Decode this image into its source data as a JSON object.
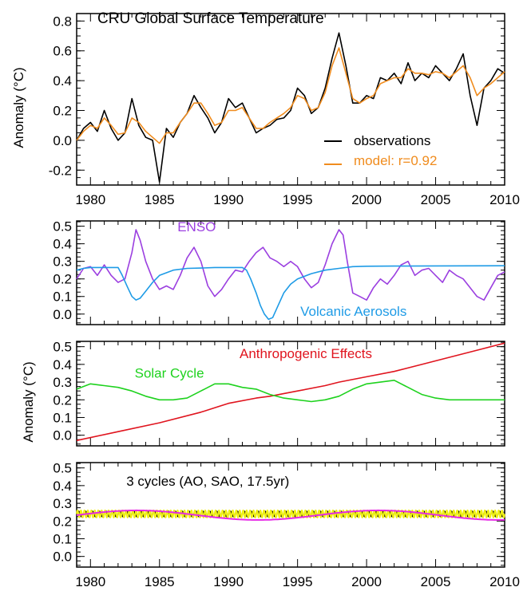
{
  "colors": {
    "observations": "#000000",
    "model": "#f08c1e",
    "enso": "#9b3fe0",
    "volcanic": "#1e9be6",
    "anthropogenic": "#e0141e",
    "solar": "#1ed21e",
    "cycle_black": "#000000",
    "cycle_yellow": "#f0f014",
    "cycle_magenta": "#e628e6"
  },
  "chart_data": [
    {
      "type": "line",
      "title": "CRU Global Surface Temperature",
      "ylabel": "Anomaly (°C)",
      "xlim": [
        1979,
        2010
      ],
      "ylim": [
        -0.3,
        0.85
      ],
      "xticks": [
        "1980",
        "1985",
        "1990",
        "1995",
        "2000",
        "2005",
        "2010"
      ],
      "yticks": [
        "-0.2",
        "0.0",
        "0.2",
        "0.4",
        "0.6",
        "0.8"
      ],
      "legend": [
        {
          "label": "observations",
          "color_key": "observations"
        },
        {
          "label": "model:  r=0.92",
          "color_key": "model"
        }
      ],
      "series": [
        {
          "name": "observations",
          "color_key": "observations",
          "x": [
            1979,
            1979.5,
            1980,
            1980.5,
            1981,
            1981.5,
            1982,
            1982.5,
            1983,
            1983.5,
            1984,
            1984.5,
            1985,
            1985.5,
            1986,
            1986.5,
            1987,
            1987.5,
            1988,
            1988.5,
            1989,
            1989.5,
            1990,
            1990.5,
            1991,
            1991.5,
            1992,
            1992.5,
            1993,
            1993.5,
            1994,
            1994.5,
            1995,
            1995.5,
            1996,
            1996.5,
            1997,
            1997.5,
            1998,
            1998.5,
            1999,
            1999.5,
            2000,
            2000.5,
            2001,
            2001.5,
            2002,
            2002.5,
            2003,
            2003.5,
            2004,
            2004.5,
            2005,
            2005.5,
            2006,
            2006.5,
            2007,
            2007.5,
            2008,
            2008.5,
            2009,
            2009.5,
            2010
          ],
          "y": [
            0.0,
            0.08,
            0.12,
            0.06,
            0.2,
            0.08,
            0.0,
            0.05,
            0.28,
            0.1,
            0.02,
            0.0,
            -0.28,
            0.08,
            0.02,
            0.12,
            0.18,
            0.3,
            0.22,
            0.15,
            0.05,
            0.12,
            0.28,
            0.22,
            0.25,
            0.15,
            0.05,
            0.08,
            0.1,
            0.14,
            0.15,
            0.2,
            0.35,
            0.3,
            0.18,
            0.22,
            0.35,
            0.55,
            0.72,
            0.5,
            0.25,
            0.25,
            0.3,
            0.28,
            0.42,
            0.4,
            0.45,
            0.38,
            0.52,
            0.4,
            0.45,
            0.42,
            0.5,
            0.45,
            0.4,
            0.48,
            0.58,
            0.3,
            0.1,
            0.35,
            0.4,
            0.48,
            0.45
          ]
        },
        {
          "name": "model",
          "color_key": "model",
          "x": [
            1979,
            1979.5,
            1980,
            1980.5,
            1981,
            1981.5,
            1982,
            1982.5,
            1983,
            1983.5,
            1984,
            1984.5,
            1985,
            1985.5,
            1986,
            1986.5,
            1987,
            1987.5,
            1988,
            1988.5,
            1989,
            1989.5,
            1990,
            1990.5,
            1991,
            1991.5,
            1992,
            1992.5,
            1993,
            1993.5,
            1994,
            1994.5,
            1995,
            1995.5,
            1996,
            1996.5,
            1997,
            1997.5,
            1998,
            1998.5,
            1999,
            1999.5,
            2000,
            2000.5,
            2001,
            2001.5,
            2002,
            2002.5,
            2003,
            2003.5,
            2004,
            2004.5,
            2005,
            2005.5,
            2006,
            2006.5,
            2007,
            2007.5,
            2008,
            2008.5,
            2009,
            2009.5,
            2010
          ],
          "y": [
            0.0,
            0.06,
            0.1,
            0.08,
            0.15,
            0.1,
            0.04,
            0.05,
            0.15,
            0.12,
            0.06,
            0.02,
            -0.02,
            0.05,
            0.05,
            0.12,
            0.18,
            0.25,
            0.25,
            0.18,
            0.1,
            0.12,
            0.2,
            0.2,
            0.22,
            0.15,
            0.08,
            0.08,
            0.12,
            0.15,
            0.18,
            0.22,
            0.3,
            0.28,
            0.2,
            0.22,
            0.32,
            0.5,
            0.62,
            0.45,
            0.28,
            0.25,
            0.28,
            0.3,
            0.38,
            0.4,
            0.42,
            0.42,
            0.48,
            0.45,
            0.45,
            0.44,
            0.46,
            0.45,
            0.42,
            0.46,
            0.5,
            0.42,
            0.3,
            0.35,
            0.38,
            0.42,
            0.46
          ]
        }
      ]
    },
    {
      "type": "line",
      "xlim": [
        1979,
        2010
      ],
      "ylim": [
        -0.06,
        0.53
      ],
      "yticks": [
        "0.0",
        "0.1",
        "0.2",
        "0.3",
        "0.4",
        "0.5"
      ],
      "annotations": [
        {
          "text": "ENSO",
          "color_key": "enso",
          "x": 1986.3,
          "y": 0.47
        },
        {
          "text": "Volcanic Aerosols",
          "color_key": "volcanic",
          "x": 1995.2,
          "y": -0.01
        }
      ],
      "series": [
        {
          "name": "ENSO",
          "color_key": "enso",
          "x": [
            1979,
            1979.5,
            1980,
            1980.5,
            1981,
            1981.5,
            1982,
            1982.5,
            1983,
            1983.3,
            1983.6,
            1984,
            1984.5,
            1985,
            1985.5,
            1986,
            1986.5,
            1987,
            1987.5,
            1988,
            1988.5,
            1989,
            1989.5,
            1990,
            1990.5,
            1991,
            1991.5,
            1992,
            1992.5,
            1993,
            1993.5,
            1994,
            1994.5,
            1995,
            1995.5,
            1996,
            1996.5,
            1997,
            1997.5,
            1998,
            1998.3,
            1998.6,
            1999,
            1999.5,
            2000,
            2000.5,
            2001,
            2001.5,
            2002,
            2002.5,
            2003,
            2003.5,
            2004,
            2004.5,
            2005,
            2005.5,
            2006,
            2006.5,
            2007,
            2007.5,
            2008,
            2008.5,
            2009,
            2009.5,
            2010
          ],
          "y": [
            0.2,
            0.26,
            0.27,
            0.22,
            0.28,
            0.22,
            0.18,
            0.2,
            0.35,
            0.48,
            0.42,
            0.3,
            0.2,
            0.14,
            0.16,
            0.14,
            0.22,
            0.32,
            0.38,
            0.3,
            0.16,
            0.1,
            0.14,
            0.2,
            0.25,
            0.24,
            0.3,
            0.35,
            0.38,
            0.32,
            0.3,
            0.27,
            0.3,
            0.27,
            0.2,
            0.15,
            0.18,
            0.28,
            0.4,
            0.48,
            0.45,
            0.3,
            0.12,
            0.1,
            0.08,
            0.15,
            0.2,
            0.17,
            0.22,
            0.28,
            0.3,
            0.22,
            0.25,
            0.26,
            0.22,
            0.18,
            0.25,
            0.22,
            0.2,
            0.15,
            0.1,
            0.08,
            0.15,
            0.22,
            0.24
          ]
        },
        {
          "name": "Volcanic Aerosols",
          "color_key": "volcanic",
          "x": [
            1979,
            1979.5,
            1980,
            1981,
            1982,
            1982.3,
            1982.7,
            1983,
            1983.3,
            1983.6,
            1984,
            1984.5,
            1985,
            1986,
            1987,
            1988,
            1989,
            1990,
            1991,
            1991.3,
            1991.6,
            1992,
            1992.3,
            1992.6,
            1992.9,
            1993.2,
            1993.6,
            1994,
            1994.5,
            1995,
            1996,
            1997,
            1998,
            1999,
            2000,
            2002,
            2005,
            2010
          ],
          "y": [
            0.25,
            0.26,
            0.265,
            0.265,
            0.265,
            0.22,
            0.15,
            0.1,
            0.08,
            0.09,
            0.13,
            0.18,
            0.22,
            0.25,
            0.26,
            0.262,
            0.265,
            0.265,
            0.265,
            0.25,
            0.2,
            0.12,
            0.05,
            0.0,
            -0.03,
            -0.02,
            0.05,
            0.12,
            0.17,
            0.2,
            0.23,
            0.25,
            0.26,
            0.27,
            0.272,
            0.273,
            0.274,
            0.275
          ]
        }
      ]
    },
    {
      "type": "line",
      "ylabel": "Anomaly (°C)",
      "xlim": [
        1979,
        2010
      ],
      "ylim": [
        -0.06,
        0.53
      ],
      "yticks": [
        "0.0",
        "0.1",
        "0.2",
        "0.3",
        "0.4",
        "0.5"
      ],
      "annotations": [
        {
          "text": "Anthropogenic Effects",
          "color_key": "anthropogenic",
          "x": 1990.8,
          "y": 0.435
        },
        {
          "text": "Solar Cycle",
          "color_key": "solar",
          "x": 1983.2,
          "y": 0.325
        }
      ],
      "series": [
        {
          "name": "Anthropogenic Effects",
          "color_key": "anthropogenic",
          "x": [
            1979,
            1982,
            1985,
            1988,
            1990,
            1992,
            1993,
            1995,
            1997,
            1998,
            2000,
            2002,
            2004,
            2006,
            2008,
            2010
          ],
          "y": [
            -0.03,
            0.02,
            0.07,
            0.13,
            0.18,
            0.21,
            0.22,
            0.25,
            0.28,
            0.3,
            0.33,
            0.36,
            0.4,
            0.44,
            0.48,
            0.52
          ]
        },
        {
          "name": "Solar Cycle",
          "color_key": "solar",
          "x": [
            1979,
            1980,
            1981,
            1982,
            1983,
            1984,
            1985,
            1986,
            1987,
            1988,
            1989,
            1990,
            1991,
            1992,
            1993,
            1994,
            1995,
            1996,
            1997,
            1998,
            1999,
            2000,
            2001,
            2002,
            2003,
            2004,
            2005,
            2006,
            2007,
            2008,
            2009,
            2010
          ],
          "y": [
            0.26,
            0.29,
            0.28,
            0.27,
            0.25,
            0.22,
            0.2,
            0.2,
            0.21,
            0.25,
            0.29,
            0.29,
            0.27,
            0.26,
            0.23,
            0.21,
            0.2,
            0.19,
            0.2,
            0.22,
            0.26,
            0.29,
            0.3,
            0.31,
            0.27,
            0.23,
            0.21,
            0.2,
            0.2,
            0.2,
            0.2,
            0.2
          ]
        }
      ]
    },
    {
      "type": "line",
      "xlim": [
        1979,
        2010
      ],
      "ylim": [
        -0.06,
        0.53
      ],
      "xticks": [
        "1980",
        "1985",
        "1990",
        "1995",
        "2000",
        "2005",
        "2010"
      ],
      "yticks": [
        "0.0",
        "0.1",
        "0.2",
        "0.3",
        "0.4",
        "0.5"
      ],
      "annotations": [
        {
          "text": "3 cycles (AO, SAO, 17.5yr)",
          "color_key": "cycle_black",
          "x": 1982.6,
          "y": 0.4
        }
      ],
      "series": [
        {
          "name": "AO",
          "color_key": "cycle_black",
          "period": 0.5,
          "center": 0.24,
          "amplitude": 0.015
        },
        {
          "name": "SAO",
          "color_key": "cycle_yellow",
          "period": 0.25,
          "center": 0.24,
          "amplitude": 0.02
        },
        {
          "name": "17.5yr",
          "color_key": "cycle_magenta",
          "period": 17.5,
          "center": 0.233,
          "amplitude": 0.027
        }
      ]
    }
  ]
}
